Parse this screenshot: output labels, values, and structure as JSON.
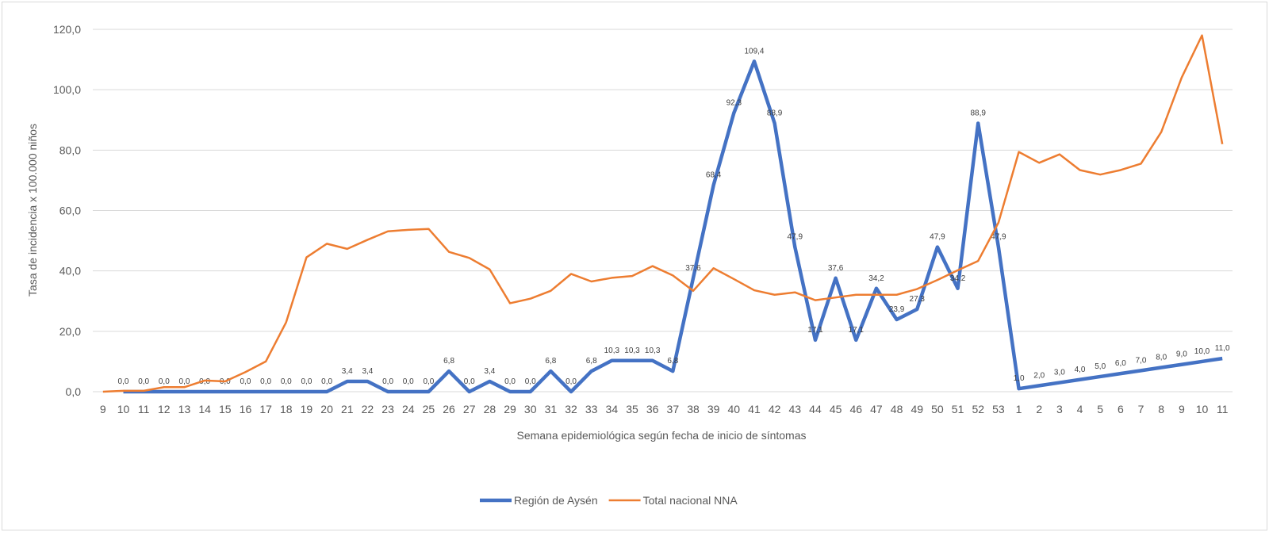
{
  "chart_data": {
    "type": "line",
    "x_label": "Semana epidemiológica según fecha de inicio de síntomas",
    "y_label": "Tasa de incidencia x 100.000 niños",
    "categories": [
      "9",
      "10",
      "11",
      "12",
      "13",
      "14",
      "15",
      "16",
      "17",
      "18",
      "19",
      "20",
      "21",
      "22",
      "23",
      "24",
      "25",
      "26",
      "27",
      "28",
      "29",
      "30",
      "31",
      "32",
      "33",
      "34",
      "35",
      "36",
      "37",
      "38",
      "39",
      "40",
      "41",
      "42",
      "43",
      "44",
      "45",
      "46",
      "47",
      "48",
      "49",
      "50",
      "51",
      "52",
      "53",
      "1",
      "2",
      "3",
      "4",
      "5",
      "6",
      "7",
      "8",
      "9",
      "10",
      "11"
    ],
    "series": [
      {
        "name": "Región de Aysén",
        "color": "#4472c4",
        "values": [
          null,
          0,
          0,
          0,
          0,
          0,
          0,
          0,
          0,
          0,
          0,
          0,
          3.4,
          3.4,
          0,
          0,
          0,
          6.8,
          0,
          3.4,
          0,
          0,
          6.8,
          0,
          6.8,
          10.3,
          10.3,
          10.3,
          6.8,
          37.6,
          68.4,
          92.3,
          109.4,
          88.9,
          47.9,
          17.1,
          37.6,
          17.1,
          34.2,
          23.9,
          27.3,
          47.9,
          34.2,
          88.9,
          47.9,
          1,
          2,
          3,
          4,
          5,
          6,
          7,
          8,
          9,
          10,
          11
        ],
        "value_labels": [
          null,
          "0,0",
          "0,0",
          "0,0",
          "0,0",
          "0,0",
          "0,0",
          "0,0",
          "0,0",
          "0,0",
          "0,0",
          "0,0",
          "3,4",
          "3,4",
          "0,0",
          "0,0",
          "0,0",
          "6,8",
          "0,0",
          "3,4",
          "0,0",
          "0,0",
          "6,8",
          "0,0",
          "6,8",
          "10,3",
          "10,3",
          "10,3",
          "6,8",
          "37,6",
          "68,4",
          "92,3",
          "109,4",
          "88,9",
          "47,9",
          "17,1",
          "37,6",
          "17,1",
          "34,2",
          "23,9",
          "27,3",
          "47,9",
          "34,2",
          "88,9",
          "47,9",
          "1,0",
          "2,0",
          "3,0",
          "4,0",
          "5,0",
          "6,0",
          "7,0",
          "8,0",
          "9,0",
          "10,0",
          "11,0"
        ]
      },
      {
        "name": "Total nacional NNA",
        "color": "#ed7d31",
        "values": [
          0,
          0.3,
          0.3,
          1.5,
          1.5,
          3.7,
          3.4,
          6.5,
          10,
          23,
          44.5,
          49,
          47.3,
          50.3,
          53.1,
          53.6,
          53.9,
          46.3,
          44.3,
          40.5,
          29.3,
          30.8,
          33.4,
          39,
          36.5,
          37.7,
          38.3,
          41.6,
          38.5,
          33.4,
          40.9,
          37.3,
          33.6,
          32.1,
          32.9,
          30.3,
          31.2,
          32.1,
          32.1,
          32.1,
          34,
          37,
          40.2,
          43.3,
          56,
          79.4,
          75.8,
          78.6,
          73.4,
          71.9,
          73.4,
          75.5,
          86,
          104,
          118,
          82
        ]
      }
    ],
    "ylim": [
      0,
      120
    ],
    "yticks": [
      {
        "value": 0,
        "label": "0,0"
      },
      {
        "value": 20,
        "label": "20,0"
      },
      {
        "value": 40,
        "label": "40,0"
      },
      {
        "value": 60,
        "label": "60,0"
      },
      {
        "value": 80,
        "label": "80,0"
      },
      {
        "value": 100,
        "label": "100,0"
      },
      {
        "value": 120,
        "label": "120,0"
      }
    ],
    "grid": true
  }
}
